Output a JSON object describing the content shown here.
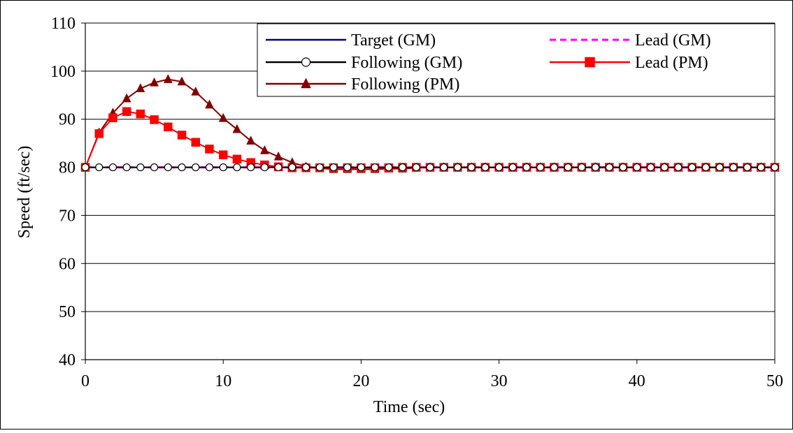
{
  "chart_data": {
    "type": "line",
    "xlabel": "Time (sec)",
    "ylabel": "Speed (ft/sec)",
    "xlim": [
      0,
      50
    ],
    "ylim": [
      40,
      110
    ],
    "xticks": [
      0,
      10,
      20,
      30,
      40,
      50
    ],
    "yticks": [
      40,
      50,
      60,
      70,
      80,
      90,
      100,
      110
    ],
    "grid": "horizontal",
    "legend_position": "top-right",
    "series": [
      {
        "name": "Target (GM)",
        "color": "#000080",
        "line": "solid",
        "marker": "none",
        "x": [
          0,
          50
        ],
        "y": [
          80,
          80
        ]
      },
      {
        "name": "Lead (GM)",
        "color": "#ff00ff",
        "line": "dashed",
        "marker": "none",
        "x": [
          0,
          50
        ],
        "y": [
          80,
          80
        ]
      },
      {
        "name": "Following (GM)",
        "color": "#000000",
        "line": "solid",
        "marker": "circle",
        "x": [
          0,
          1,
          2,
          3,
          4,
          5,
          6,
          7,
          8,
          9,
          10,
          11,
          12,
          13,
          14,
          15,
          16,
          17,
          18,
          19,
          20,
          21,
          22,
          23,
          24,
          25,
          26,
          27,
          28,
          29,
          30,
          31,
          32,
          33,
          34,
          35,
          36,
          37,
          38,
          39,
          40,
          41,
          42,
          43,
          44,
          45,
          46,
          47,
          48,
          49,
          50
        ],
        "y": [
          80,
          80,
          80,
          80,
          80,
          80,
          80,
          80,
          80,
          80,
          80,
          80,
          80,
          80,
          80,
          80,
          80,
          80,
          80,
          80,
          80,
          80,
          80,
          80,
          80,
          80,
          80,
          80,
          80,
          80,
          80,
          80,
          80,
          80,
          80,
          80,
          80,
          80,
          80,
          80,
          80,
          80,
          80,
          80,
          80,
          80,
          80,
          80,
          80,
          80,
          80
        ]
      },
      {
        "name": "Lead (PM)",
        "color": "#ff0000",
        "line": "solid",
        "marker": "square",
        "x": [
          0,
          1,
          2,
          3,
          4,
          5,
          6,
          7,
          8,
          9,
          10,
          11,
          12,
          13,
          14,
          15,
          16,
          17,
          18,
          19,
          20,
          21,
          22,
          23,
          24,
          25,
          26,
          27,
          28,
          29,
          30,
          31,
          32,
          33,
          34,
          35,
          36,
          37,
          38,
          39,
          40,
          41,
          42,
          43,
          44,
          45,
          46,
          47,
          48,
          49,
          50
        ],
        "y": [
          80,
          87,
          90.3,
          91.6,
          91.1,
          89.9,
          88.4,
          86.7,
          85.2,
          83.8,
          82.6,
          81.7,
          81.0,
          80.5,
          80.1,
          79.9,
          79.9,
          79.9,
          79.9,
          79.9,
          79.9,
          79.9,
          79.9,
          80,
          80,
          80,
          80,
          80,
          80,
          80,
          80,
          80,
          80,
          80,
          80,
          80,
          80,
          80,
          80,
          80,
          80,
          80,
          80,
          80,
          80,
          80,
          80,
          80,
          80,
          80,
          80
        ]
      },
      {
        "name": "Following (PM)",
        "color": "#800000",
        "line": "solid",
        "marker": "triangle",
        "x": [
          0,
          1,
          2,
          3,
          4,
          5,
          6,
          7,
          8,
          9,
          10,
          11,
          12,
          13,
          14,
          15,
          16,
          17,
          18,
          19,
          20,
          21,
          22,
          23,
          24,
          25,
          26,
          27,
          28,
          29,
          30,
          31,
          32,
          33,
          34,
          35,
          36,
          37,
          38,
          39,
          40,
          41,
          42,
          43,
          44,
          45,
          46,
          47,
          48,
          49,
          50
        ],
        "y": [
          80,
          87.2,
          91.3,
          94.3,
          96.4,
          97.6,
          98.3,
          97.8,
          95.7,
          93.0,
          90.2,
          87.9,
          85.5,
          83.5,
          82.2,
          81.0,
          80.1,
          79.8,
          79.6,
          79.6,
          79.6,
          79.6,
          79.7,
          79.7,
          79.9,
          80,
          80,
          80,
          80,
          80,
          80,
          80,
          80,
          80,
          80,
          80,
          80,
          80,
          80,
          80,
          80,
          80,
          80,
          80,
          80,
          80,
          80,
          80,
          80,
          80,
          80
        ]
      }
    ]
  }
}
